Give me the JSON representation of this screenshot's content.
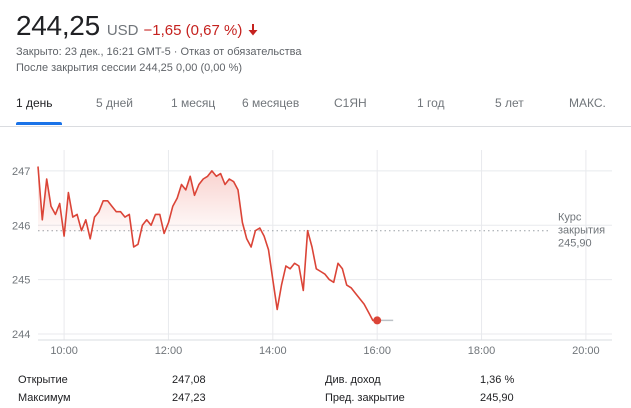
{
  "quote": {
    "price": "244,25",
    "currency": "USD",
    "change": "−1,65 (0,67 %)",
    "closed_info": "Закрыто: 23 дек., 16:21 GMT-5 · Отказ от обязательства",
    "after_hours": "После закрытия сессии 244,25 0,00 (0,00 %)",
    "change_color": "#c5221f"
  },
  "tabs": [
    {
      "label": "1 день",
      "active": true
    },
    {
      "label": "5 дней",
      "active": false
    },
    {
      "label": "1 месяц",
      "active": false
    },
    {
      "label": "6 месяцев",
      "active": false
    },
    {
      "label": "С1ЯН",
      "active": false
    },
    {
      "label": "1 год",
      "active": false
    },
    {
      "label": "5 лет",
      "active": false
    },
    {
      "label": "МАКС.",
      "active": false
    }
  ],
  "chart_data": {
    "type": "line",
    "x": [
      "09:30",
      "09:35",
      "09:40",
      "09:45",
      "09:50",
      "09:55",
      "10:00",
      "10:05",
      "10:10",
      "10:15",
      "10:20",
      "10:25",
      "10:30",
      "10:35",
      "10:40",
      "10:45",
      "10:50",
      "10:55",
      "11:00",
      "11:05",
      "11:10",
      "11:15",
      "11:20",
      "11:25",
      "11:30",
      "11:35",
      "11:40",
      "11:45",
      "11:50",
      "11:55",
      "12:00",
      "12:05",
      "12:10",
      "12:15",
      "12:20",
      "12:25",
      "12:30",
      "12:35",
      "12:40",
      "12:45",
      "12:50",
      "12:55",
      "13:00",
      "13:05",
      "13:10",
      "13:15",
      "13:20",
      "13:25",
      "13:30",
      "13:35",
      "13:40",
      "13:45",
      "13:50",
      "13:55",
      "14:00",
      "14:05",
      "14:10",
      "14:15",
      "14:20",
      "14:25",
      "14:30",
      "14:35",
      "14:40",
      "14:45",
      "14:50",
      "14:55",
      "15:00",
      "15:05",
      "15:10",
      "15:15",
      "15:20",
      "15:25",
      "15:30",
      "15:35",
      "15:40",
      "15:45",
      "15:50",
      "15:55",
      "16:00"
    ],
    "series": [
      {
        "values": [
          247.08,
          246.1,
          246.85,
          246.35,
          246.2,
          246.4,
          245.8,
          246.6,
          246.15,
          246.2,
          245.9,
          246.1,
          245.75,
          246.15,
          246.25,
          246.45,
          246.45,
          246.35,
          246.25,
          246.25,
          246.15,
          246.2,
          245.6,
          245.65,
          246.0,
          246.1,
          246.0,
          246.2,
          246.2,
          245.85,
          246.05,
          246.35,
          246.5,
          246.75,
          246.65,
          246.9,
          246.55,
          246.75,
          246.85,
          246.9,
          247.0,
          246.9,
          246.95,
          246.75,
          246.85,
          246.8,
          246.65,
          246.05,
          245.75,
          245.6,
          245.9,
          245.95,
          245.8,
          245.55,
          245.0,
          244.45,
          244.9,
          245.25,
          245.2,
          245.3,
          245.25,
          244.8,
          245.9,
          245.6,
          245.2,
          245.15,
          245.1,
          245.0,
          244.95,
          245.3,
          245.2,
          244.9,
          244.85,
          244.75,
          244.65,
          244.55,
          244.4,
          244.25,
          244.25
        ]
      }
    ],
    "yticks": [
      "247",
      "246",
      "245",
      "244"
    ],
    "ytick_values": [
      247,
      246,
      245,
      244
    ],
    "xticks": [
      "10:00",
      "12:00",
      "14:00",
      "16:00",
      "18:00",
      "20:00"
    ],
    "xtick_values": [
      "10:00",
      "12:00",
      "14:00",
      "16:00",
      "18:00",
      "20:00"
    ],
    "ylim": [
      244,
      247.2
    ],
    "xlim": [
      "09:30",
      "20:30"
    ],
    "prev_close_value": 245.9,
    "prev_close_label_1": "Курс",
    "prev_close_label_2": "закрытия",
    "prev_close_text": "245,90",
    "line_color": "#db4437",
    "fill_color": "#e8574a"
  },
  "stats": {
    "open_label": "Открытие",
    "open_value": "247,08",
    "high_label": "Максимум",
    "high_value": "247,23",
    "div_label": "Див. доход",
    "div_value": "1,36 %",
    "prev_label": "Пред. закрытие",
    "prev_value": "245,90"
  }
}
